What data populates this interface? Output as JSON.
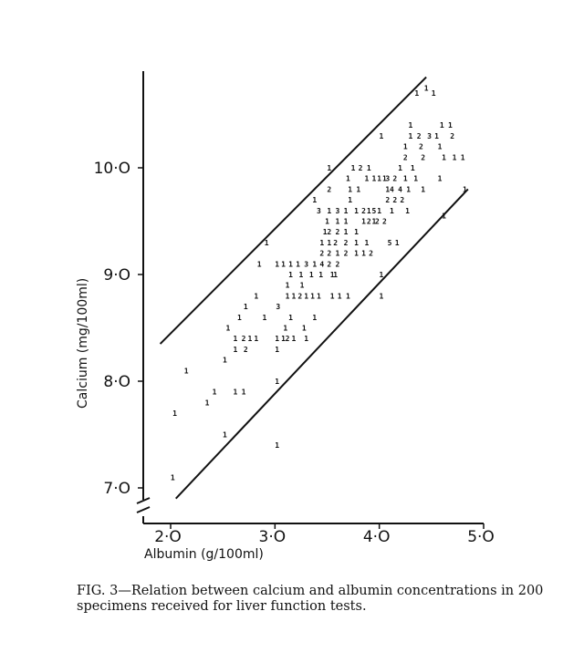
{
  "figure_label": "FIG. 3",
  "caption": "—Relation between calcium and albumin concentrations in 200 specimens received for liver function tests.",
  "chart_data": {
    "type": "scatter",
    "title": "",
    "xlabel": "Albumin (g/100ml)",
    "ylabel": "Calcium (mg/100ml)",
    "xlim": [
      1.85,
      5.0
    ],
    "ylim": [
      6.8,
      11.0
    ],
    "x_ticks": [
      2.0,
      3.0,
      4.0,
      5.0
    ],
    "x_tick_labels": [
      "2·O",
      "3·O",
      "4·O",
      "5·O"
    ],
    "y_ticks": [
      7.0,
      8.0,
      9.0,
      10.0
    ],
    "y_tick_labels": [
      "7·O",
      "8·O",
      "9·O",
      "10·O"
    ],
    "axis_break": true,
    "grid": false,
    "marker_note": "points drawn as digits giving number of specimens at each coordinate",
    "bounds": [
      {
        "x": [
          1.9,
          4.45
        ],
        "y": [
          8.35,
          10.85
        ]
      },
      {
        "x": [
          2.05,
          4.85
        ],
        "y": [
          6.9,
          9.8
        ]
      }
    ],
    "points": [
      {
        "x": 2.02,
        "y": 7.1,
        "n": 1
      },
      {
        "x": 2.04,
        "y": 7.7,
        "n": 1
      },
      {
        "x": 2.15,
        "y": 8.1,
        "n": 1
      },
      {
        "x": 2.35,
        "y": 7.8,
        "n": 1
      },
      {
        "x": 2.42,
        "y": 7.9,
        "n": 1
      },
      {
        "x": 2.52,
        "y": 7.5,
        "n": 1
      },
      {
        "x": 2.52,
        "y": 8.2,
        "n": 1
      },
      {
        "x": 2.55,
        "y": 8.5,
        "n": 1
      },
      {
        "x": 2.62,
        "y": 7.9,
        "n": 1
      },
      {
        "x": 2.7,
        "y": 7.9,
        "n": 1
      },
      {
        "x": 2.62,
        "y": 8.4,
        "n": 1
      },
      {
        "x": 2.62,
        "y": 8.3,
        "n": 1
      },
      {
        "x": 2.66,
        "y": 8.6,
        "n": 1
      },
      {
        "x": 2.7,
        "y": 8.4,
        "n": 2
      },
      {
        "x": 2.72,
        "y": 8.3,
        "n": 2
      },
      {
        "x": 2.76,
        "y": 8.4,
        "n": 1
      },
      {
        "x": 2.72,
        "y": 8.7,
        "n": 1
      },
      {
        "x": 2.82,
        "y": 8.4,
        "n": 1
      },
      {
        "x": 2.82,
        "y": 8.8,
        "n": 1
      },
      {
        "x": 2.85,
        "y": 9.1,
        "n": 1
      },
      {
        "x": 2.92,
        "y": 9.3,
        "n": 1
      },
      {
        "x": 2.9,
        "y": 8.6,
        "n": 1
      },
      {
        "x": 3.02,
        "y": 8.0,
        "n": 1
      },
      {
        "x": 3.02,
        "y": 7.4,
        "n": 1
      },
      {
        "x": 3.02,
        "y": 8.4,
        "n": 1
      },
      {
        "x": 3.02,
        "y": 8.3,
        "n": 1
      },
      {
        "x": 3.03,
        "y": 8.7,
        "n": 3
      },
      {
        "x": 3.08,
        "y": 8.4,
        "n": 1
      },
      {
        "x": 3.12,
        "y": 8.4,
        "n": 2
      },
      {
        "x": 3.18,
        "y": 8.4,
        "n": 1
      },
      {
        "x": 3.1,
        "y": 8.5,
        "n": 1
      },
      {
        "x": 3.15,
        "y": 8.6,
        "n": 1
      },
      {
        "x": 3.02,
        "y": 9.1,
        "n": 1
      },
      {
        "x": 3.08,
        "y": 9.1,
        "n": 1
      },
      {
        "x": 3.15,
        "y": 9.1,
        "n": 1
      },
      {
        "x": 3.22,
        "y": 9.1,
        "n": 1
      },
      {
        "x": 3.15,
        "y": 9.0,
        "n": 1
      },
      {
        "x": 3.12,
        "y": 8.9,
        "n": 1
      },
      {
        "x": 3.12,
        "y": 8.8,
        "n": 1
      },
      {
        "x": 3.18,
        "y": 8.8,
        "n": 1
      },
      {
        "x": 3.24,
        "y": 8.8,
        "n": 2
      },
      {
        "x": 3.26,
        "y": 8.9,
        "n": 1
      },
      {
        "x": 3.3,
        "y": 8.8,
        "n": 1
      },
      {
        "x": 3.25,
        "y": 9.0,
        "n": 1
      },
      {
        "x": 3.3,
        "y": 9.1,
        "n": 3
      },
      {
        "x": 3.28,
        "y": 8.5,
        "n": 1
      },
      {
        "x": 3.3,
        "y": 8.4,
        "n": 1
      },
      {
        "x": 3.38,
        "y": 8.6,
        "n": 1
      },
      {
        "x": 3.35,
        "y": 9.0,
        "n": 1
      },
      {
        "x": 3.36,
        "y": 8.8,
        "n": 1
      },
      {
        "x": 3.38,
        "y": 9.1,
        "n": 1
      },
      {
        "x": 3.42,
        "y": 8.8,
        "n": 1
      },
      {
        "x": 3.45,
        "y": 9.1,
        "n": 4
      },
      {
        "x": 3.44,
        "y": 9.0,
        "n": 1
      },
      {
        "x": 3.38,
        "y": 9.7,
        "n": 1
      },
      {
        "x": 3.42,
        "y": 9.6,
        "n": 3
      },
      {
        "x": 3.45,
        "y": 9.2,
        "n": 2
      },
      {
        "x": 3.45,
        "y": 9.3,
        "n": 1
      },
      {
        "x": 3.48,
        "y": 9.4,
        "n": 1
      },
      {
        "x": 3.5,
        "y": 9.5,
        "n": 1
      },
      {
        "x": 3.52,
        "y": 9.2,
        "n": 2
      },
      {
        "x": 3.52,
        "y": 9.1,
        "n": 2
      },
      {
        "x": 3.52,
        "y": 9.6,
        "n": 1
      },
      {
        "x": 3.52,
        "y": 9.4,
        "n": 2
      },
      {
        "x": 3.52,
        "y": 9.3,
        "n": 1
      },
      {
        "x": 3.55,
        "y": 9.0,
        "n": 1
      },
      {
        "x": 3.55,
        "y": 8.8,
        "n": 1
      },
      {
        "x": 3.58,
        "y": 9.0,
        "n": 1
      },
      {
        "x": 3.6,
        "y": 9.1,
        "n": 2
      },
      {
        "x": 3.6,
        "y": 9.2,
        "n": 1
      },
      {
        "x": 3.58,
        "y": 9.3,
        "n": 2
      },
      {
        "x": 3.6,
        "y": 9.4,
        "n": 2
      },
      {
        "x": 3.6,
        "y": 9.5,
        "n": 1
      },
      {
        "x": 3.6,
        "y": 9.6,
        "n": 3
      },
      {
        "x": 3.52,
        "y": 9.8,
        "n": 2
      },
      {
        "x": 3.52,
        "y": 10.0,
        "n": 1
      },
      {
        "x": 3.62,
        "y": 8.8,
        "n": 1
      },
      {
        "x": 3.68,
        "y": 9.2,
        "n": 2
      },
      {
        "x": 3.68,
        "y": 9.3,
        "n": 2
      },
      {
        "x": 3.68,
        "y": 9.5,
        "n": 1
      },
      {
        "x": 3.68,
        "y": 9.6,
        "n": 1
      },
      {
        "x": 3.68,
        "y": 9.4,
        "n": 1
      },
      {
        "x": 3.72,
        "y": 9.8,
        "n": 1
      },
      {
        "x": 3.7,
        "y": 9.9,
        "n": 1
      },
      {
        "x": 3.7,
        "y": 8.8,
        "n": 1
      },
      {
        "x": 3.72,
        "y": 9.7,
        "n": 1
      },
      {
        "x": 3.75,
        "y": 10.0,
        "n": 1
      },
      {
        "x": 3.78,
        "y": 9.3,
        "n": 1
      },
      {
        "x": 3.78,
        "y": 9.2,
        "n": 1
      },
      {
        "x": 3.78,
        "y": 9.4,
        "n": 1
      },
      {
        "x": 3.78,
        "y": 9.6,
        "n": 1
      },
      {
        "x": 3.8,
        "y": 9.8,
        "n": 1
      },
      {
        "x": 3.82,
        "y": 10.0,
        "n": 2
      },
      {
        "x": 3.85,
        "y": 9.6,
        "n": 2
      },
      {
        "x": 3.85,
        "y": 9.5,
        "n": 1
      },
      {
        "x": 3.85,
        "y": 9.2,
        "n": 1
      },
      {
        "x": 3.88,
        "y": 9.9,
        "n": 1
      },
      {
        "x": 3.9,
        "y": 10.0,
        "n": 1
      },
      {
        "x": 3.9,
        "y": 9.6,
        "n": 1
      },
      {
        "x": 3.88,
        "y": 9.3,
        "n": 1
      },
      {
        "x": 3.9,
        "y": 9.5,
        "n": 2
      },
      {
        "x": 3.92,
        "y": 9.2,
        "n": 2
      },
      {
        "x": 3.95,
        "y": 9.6,
        "n": 5
      },
      {
        "x": 3.95,
        "y": 9.5,
        "n": 1
      },
      {
        "x": 3.95,
        "y": 9.9,
        "n": 1
      },
      {
        "x": 3.98,
        "y": 9.5,
        "n": 2
      },
      {
        "x": 4.0,
        "y": 9.6,
        "n": 1
      },
      {
        "x": 4.0,
        "y": 9.9,
        "n": 1
      },
      {
        "x": 4.02,
        "y": 9.0,
        "n": 1
      },
      {
        "x": 4.02,
        "y": 8.8,
        "n": 1
      },
      {
        "x": 4.02,
        "y": 10.3,
        "n": 1
      },
      {
        "x": 4.05,
        "y": 9.5,
        "n": 2
      },
      {
        "x": 4.05,
        "y": 9.9,
        "n": 1
      },
      {
        "x": 4.08,
        "y": 9.9,
        "n": 3
      },
      {
        "x": 4.08,
        "y": 9.8,
        "n": 1
      },
      {
        "x": 4.08,
        "y": 9.7,
        "n": 2
      },
      {
        "x": 4.1,
        "y": 9.3,
        "n": 5
      },
      {
        "x": 4.12,
        "y": 9.6,
        "n": 1
      },
      {
        "x": 4.12,
        "y": 9.8,
        "n": 4
      },
      {
        "x": 4.15,
        "y": 9.7,
        "n": 2
      },
      {
        "x": 4.15,
        "y": 9.9,
        "n": 2
      },
      {
        "x": 4.17,
        "y": 9.3,
        "n": 1
      },
      {
        "x": 4.2,
        "y": 9.8,
        "n": 4
      },
      {
        "x": 4.2,
        "y": 10.0,
        "n": 1
      },
      {
        "x": 4.22,
        "y": 9.7,
        "n": 2
      },
      {
        "x": 4.25,
        "y": 10.1,
        "n": 2
      },
      {
        "x": 4.25,
        "y": 9.9,
        "n": 1
      },
      {
        "x": 4.27,
        "y": 9.6,
        "n": 1
      },
      {
        "x": 4.25,
        "y": 10.2,
        "n": 1
      },
      {
        "x": 4.28,
        "y": 9.8,
        "n": 1
      },
      {
        "x": 4.3,
        "y": 10.3,
        "n": 1
      },
      {
        "x": 4.3,
        "y": 10.4,
        "n": 1
      },
      {
        "x": 4.32,
        "y": 10.0,
        "n": 1
      },
      {
        "x": 4.35,
        "y": 9.9,
        "n": 1
      },
      {
        "x": 4.36,
        "y": 10.7,
        "n": 1
      },
      {
        "x": 4.38,
        "y": 10.3,
        "n": 2
      },
      {
        "x": 4.4,
        "y": 10.2,
        "n": 2
      },
      {
        "x": 4.42,
        "y": 10.1,
        "n": 2
      },
      {
        "x": 4.42,
        "y": 9.8,
        "n": 1
      },
      {
        "x": 4.45,
        "y": 10.75,
        "n": 1
      },
      {
        "x": 4.48,
        "y": 10.3,
        "n": 3
      },
      {
        "x": 4.52,
        "y": 10.7,
        "n": 1
      },
      {
        "x": 4.55,
        "y": 10.3,
        "n": 1
      },
      {
        "x": 4.58,
        "y": 9.9,
        "n": 1
      },
      {
        "x": 4.58,
        "y": 10.2,
        "n": 1
      },
      {
        "x": 4.6,
        "y": 10.4,
        "n": 1
      },
      {
        "x": 4.62,
        "y": 10.1,
        "n": 1
      },
      {
        "x": 4.62,
        "y": 9.55,
        "n": 1
      },
      {
        "x": 4.68,
        "y": 10.4,
        "n": 1
      },
      {
        "x": 4.7,
        "y": 10.3,
        "n": 2
      },
      {
        "x": 4.72,
        "y": 10.1,
        "n": 1
      },
      {
        "x": 4.8,
        "y": 10.1,
        "n": 1
      },
      {
        "x": 4.82,
        "y": 9.8,
        "n": 1
      }
    ]
  }
}
